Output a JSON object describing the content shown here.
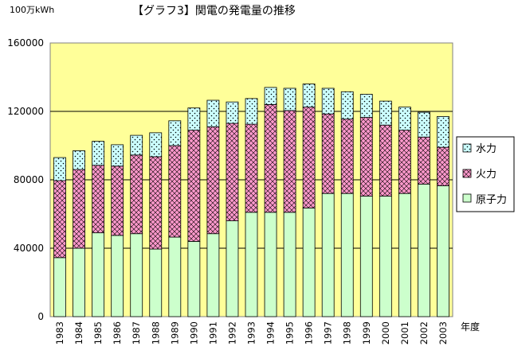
{
  "chart_data": {
    "type": "bar",
    "stacked": true,
    "title": "【グラフ3】関電の発電量の推移",
    "unit_label": "100万kWh",
    "xlabel": "年度",
    "ylim": [
      0,
      160000
    ],
    "y_ticks": [
      "0",
      "40000",
      "80000",
      "120000",
      "160000"
    ],
    "grid": "horizontal",
    "legend_placement": "right",
    "categories": [
      "1983",
      "1984",
      "1985",
      "1986",
      "1987",
      "1988",
      "1989",
      "1990",
      "1991",
      "1992",
      "1993",
      "1994",
      "1995",
      "1996",
      "1997",
      "1998",
      "1999",
      "2000",
      "2001",
      "2002",
      "2003"
    ],
    "series": [
      {
        "name": "原子力",
        "key": "nuclear",
        "color": "#ccffcc",
        "values": [
          34500,
          40000,
          49000,
          47500,
          48500,
          39500,
          46500,
          44000,
          48500,
          56000,
          61000,
          61000,
          61000,
          63500,
          72000,
          72000,
          70500,
          70500,
          72000,
          77500,
          76500
        ]
      },
      {
        "name": "火力",
        "key": "thermal",
        "color": "#ff99cc",
        "values": [
          45000,
          46000,
          39500,
          40500,
          46000,
          54000,
          53500,
          65000,
          62500,
          57000,
          51500,
          63000,
          59500,
          59000,
          46500,
          43500,
          46000,
          41500,
          37000,
          27500,
          22500
        ]
      },
      {
        "name": "水力",
        "key": "hydro",
        "color": "#ccffff",
        "values": [
          13500,
          11000,
          14000,
          12500,
          11500,
          14000,
          14500,
          13000,
          15500,
          12500,
          15000,
          10000,
          13000,
          13500,
          15000,
          16000,
          13500,
          14000,
          13500,
          14500,
          18000
        ]
      }
    ],
    "legend_order": [
      "水力",
      "火力",
      "原子力"
    ],
    "plot_background": "#ffff99"
  }
}
